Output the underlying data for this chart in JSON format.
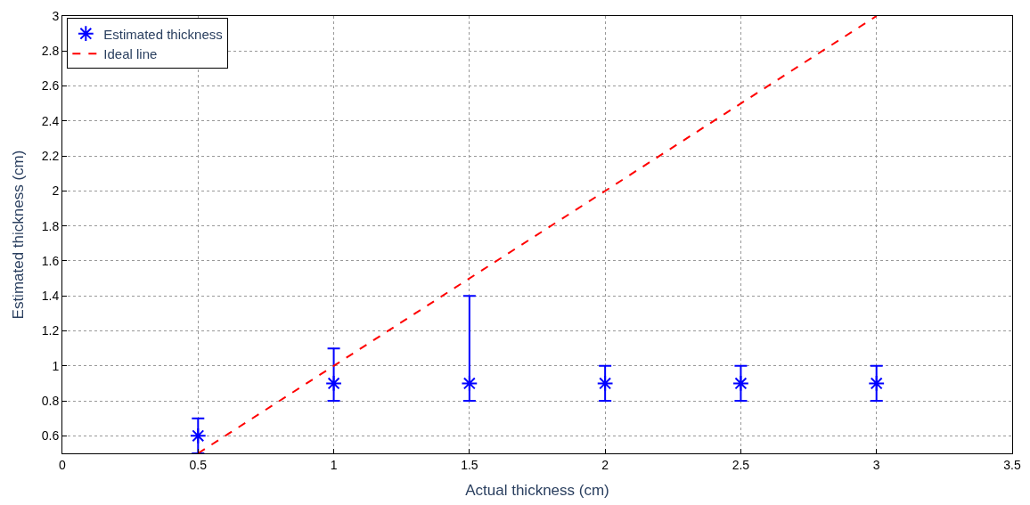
{
  "chart_data": {
    "type": "scatter",
    "xlabel": "Actual thickness (cm)",
    "ylabel": "Estimated thickness (cm)",
    "xlim": [
      0,
      3.5
    ],
    "xticks": [
      0,
      0.5,
      1,
      1.5,
      2,
      2.5,
      3,
      3.5
    ],
    "ylim": [
      0.5,
      3
    ],
    "yticks": [
      0.6,
      0.8,
      1,
      1.2,
      1.4,
      1.6,
      1.8,
      2,
      2.2,
      2.4,
      2.6,
      2.8,
      3
    ],
    "grid": true,
    "legend": "top left",
    "series": [
      {
        "name": "Estimated thickness",
        "color": "#0000ff",
        "marker": "cross",
        "x": [
          0.5,
          1,
          1.5,
          2,
          2.5,
          3
        ],
        "values": [
          0.6,
          0.9,
          0.9,
          0.9,
          0.9,
          0.9
        ],
        "errors": [
          [
            0.5,
            0.7
          ],
          [
            0.8,
            1.1
          ],
          [
            0.8,
            1.4
          ],
          [
            0.8,
            1.0
          ],
          [
            0.8,
            1.0
          ],
          [
            0.8,
            1.0
          ]
        ]
      },
      {
        "name": "Ideal line",
        "type": "line",
        "color": "#ff0000",
        "line_style": "dashed",
        "marker": "none",
        "x": [
          0.5,
          3
        ],
        "values": [
          0.5,
          3
        ]
      }
    ]
  }
}
